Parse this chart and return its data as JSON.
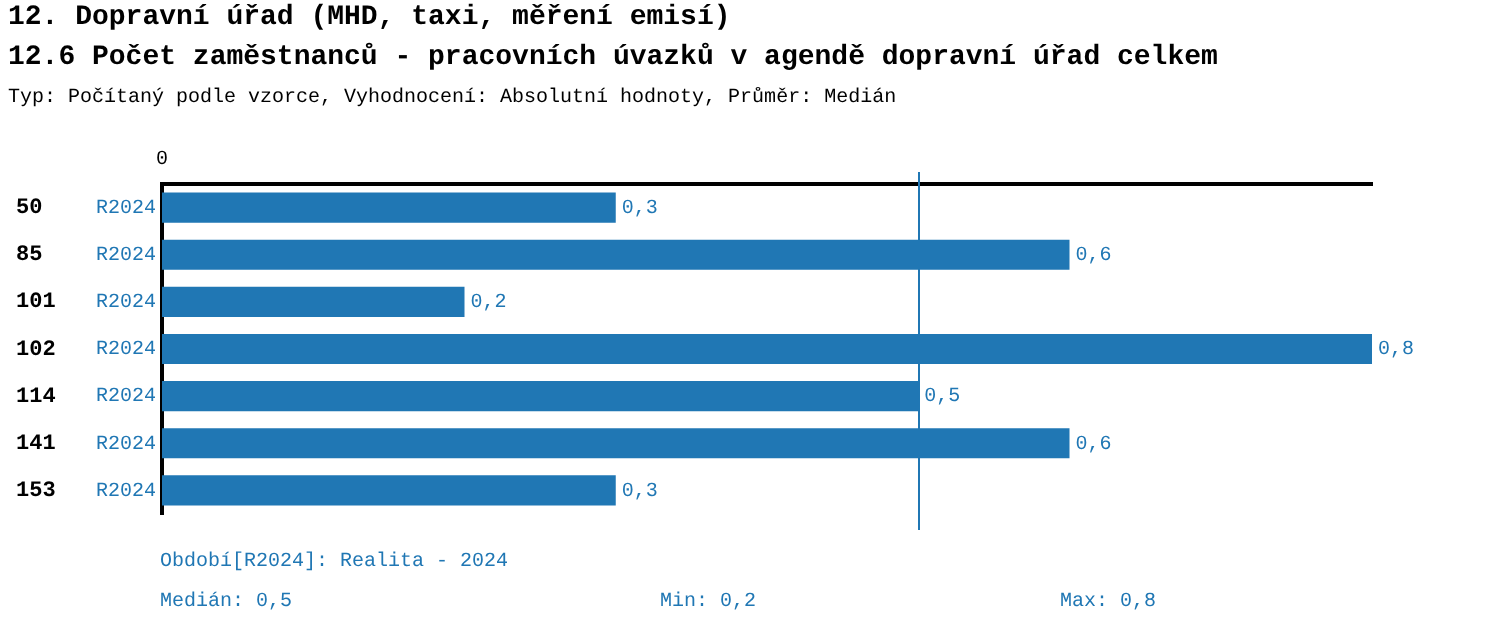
{
  "chart_data": {
    "type": "bar",
    "orientation": "horizontal",
    "title": "12. Dopravní úřad (MHD, taxi, měření emisí)",
    "subtitle": "12.6 Počet zaměstnanců - pracovních úvazků v agendě dopravní úřad celkem",
    "categories": [
      "50",
      "85",
      "101",
      "102",
      "114",
      "141",
      "153"
    ],
    "series": [
      {
        "name": "R2024",
        "color": "#2077b4",
        "values": [
          0.3,
          0.6,
          0.2,
          0.8,
          0.5,
          0.6,
          0.3
        ],
        "value_labels": [
          "0,3",
          "0,6",
          "0,2",
          "0,8",
          "0,5",
          "0,6",
          "0,3"
        ]
      }
    ],
    "grid": false,
    "legend": false,
    "ref_lines": [
      {
        "axis": "x",
        "value": 0.5,
        "color": "#2077b4"
      }
    ],
    "annotations": [
      "Typ: Počítaný podle vzorce, Vyhodnocení: Absolutní hodnoty, Průměr: Medián",
      "Období[R2024]: Realita - 2024",
      "Medián: 0,5",
      "Min: 0,2",
      "Max: 0,8",
      "0"
    ]
  }
}
